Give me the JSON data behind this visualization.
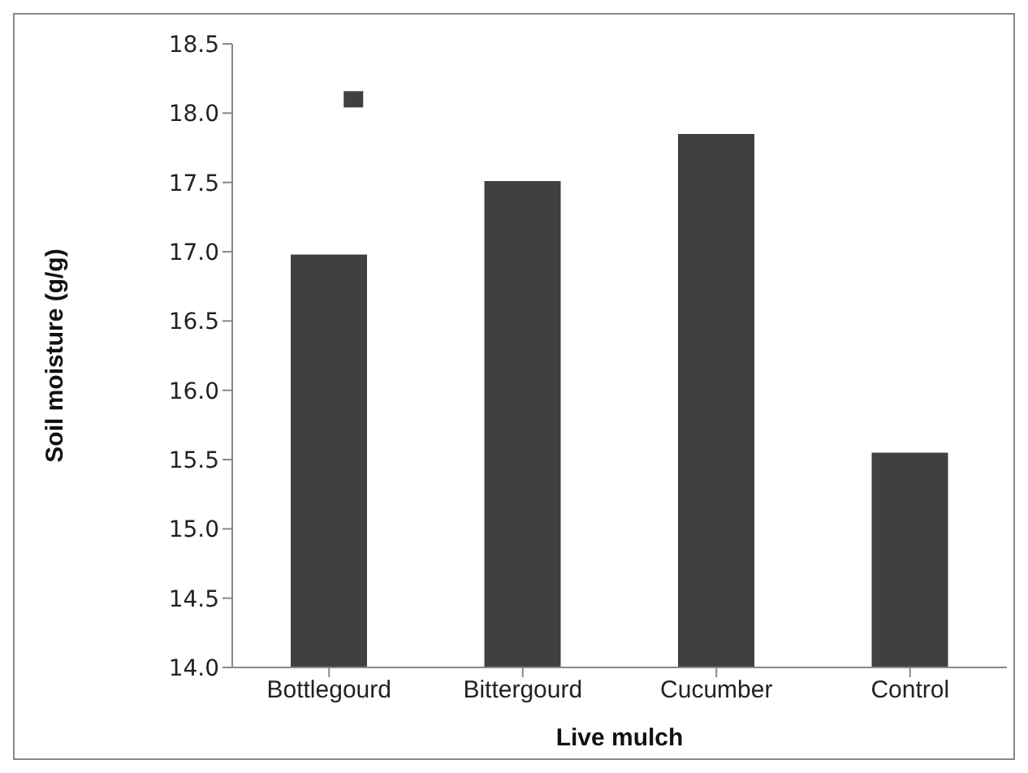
{
  "chart_data": {
    "type": "bar",
    "xlabel": "Live mulch",
    "ylabel": "Soil moisture (g/g)",
    "categories": [
      "Bottlegourd",
      "Bittergourd",
      "Cucumber",
      "Control"
    ],
    "series": [
      {
        "color": "#404040",
        "values": [
          16.98,
          17.51,
          17.85,
          15.55
        ]
      },
      {
        "type": "scatter",
        "color": "#404040",
        "marker": "square",
        "x": [
          "Bottlegourd"
        ],
        "values": [
          18.1
        ]
      }
    ],
    "ylim": [
      14.0,
      18.5
    ],
    "yticks": [
      {
        "value": 14,
        "label": "14.0"
      },
      14.5,
      {
        "value": 15,
        "label": "15.0"
      },
      15.5,
      {
        "value": 16,
        "label": "16.0"
      },
      16.5,
      {
        "value": 17,
        "label": "17.0"
      },
      17.5,
      {
        "value": 18,
        "label": "18.0"
      },
      18.5
    ],
    "grid": false,
    "legend": false
  }
}
